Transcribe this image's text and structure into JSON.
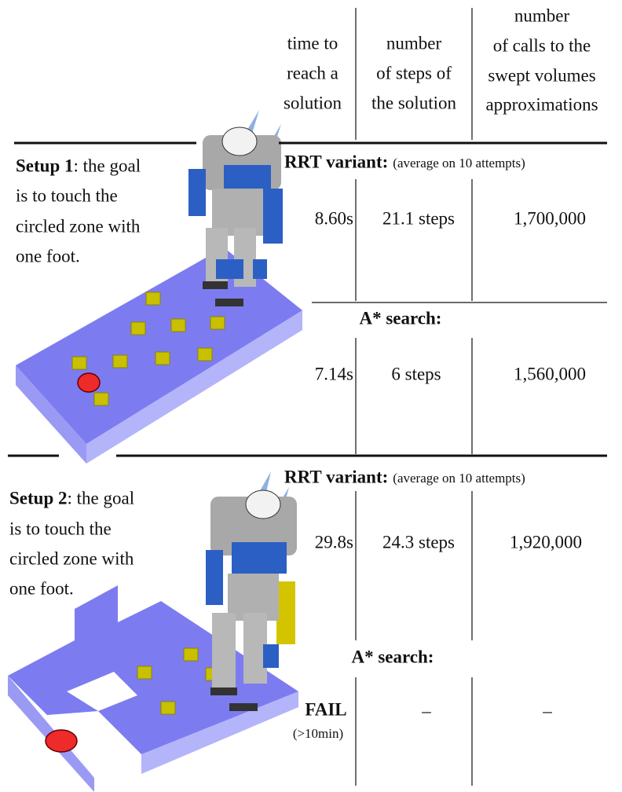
{
  "header": {
    "columns": [
      [
        "time to",
        "reach a",
        "solution"
      ],
      [
        "number",
        "of steps of",
        "the solution"
      ],
      [
        "number",
        "of calls to the",
        "swept volumes",
        "approximations"
      ]
    ]
  },
  "setups": [
    {
      "label": "Setup 1",
      "lines": [
        ": the goal",
        "is to touch the",
        "circled zone with",
        "one foot."
      ],
      "rrt": {
        "title": "RRT variant:",
        "note": "(average on 10 attempts)",
        "values": [
          "8.60s",
          "21.1 steps",
          "1,700,000"
        ]
      },
      "astar": {
        "title": "A* search:",
        "values": [
          "7.14s",
          "6 steps",
          "1,560,000"
        ]
      }
    },
    {
      "label": "Setup 2",
      "lines": [
        ": the goal",
        "is to touch the",
        "circled zone with",
        "one foot."
      ],
      "rrt": {
        "title": "RRT variant:",
        "note": "(average on 10 attempts)",
        "values": [
          "29.8s",
          "24.3 steps",
          "1,920,000"
        ]
      },
      "astar": {
        "title": "A* search:",
        "values": [
          "FAIL",
          "–",
          "–"
        ],
        "fail_note": "(>10min)"
      }
    }
  ]
}
